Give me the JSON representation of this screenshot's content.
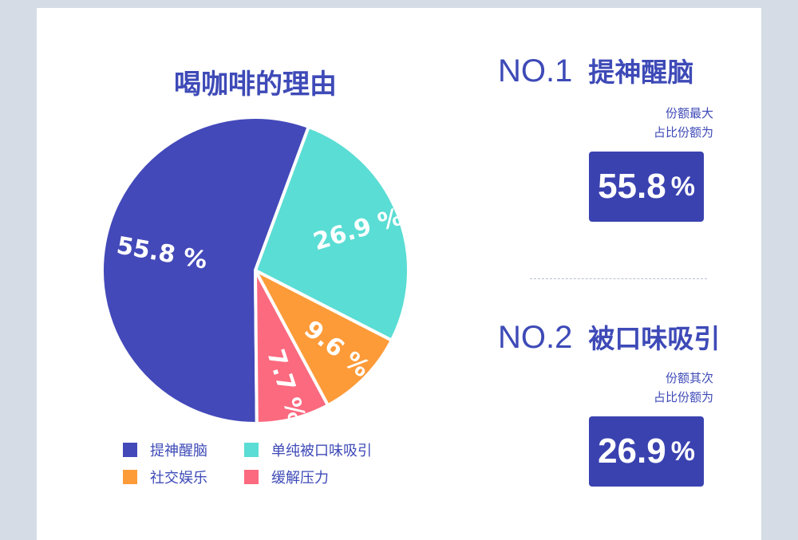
{
  "chart_data": {
    "type": "pie",
    "title": "喝咖啡的理由",
    "slices": [
      {
        "label": "提神醒脑",
        "value": 55.8,
        "display": "55.8 %",
        "color": "#4349b9"
      },
      {
        "label": "单纯被口味吸引",
        "value": 26.9,
        "display": "26.9 %",
        "color": "#5addd4"
      },
      {
        "label": "社交娱乐",
        "value": 9.6,
        "display": "9.6 %",
        "color": "#fd9b39"
      },
      {
        "label": "缓解压力",
        "value": 7.7,
        "display": "7.7 %",
        "color": "#fb6a7f"
      }
    ],
    "legend_position": "bottom"
  },
  "rankings": [
    {
      "no": "NO.1",
      "name": "提神醒脑",
      "sub1": "份额最大",
      "sub2": "占比份额为",
      "value": "55.8",
      "unit": "%"
    },
    {
      "no": "NO.2",
      "name": "被口味吸引",
      "sub1": "份额其次",
      "sub2": "占比份额为",
      "value": "26.9",
      "unit": "%"
    }
  ]
}
